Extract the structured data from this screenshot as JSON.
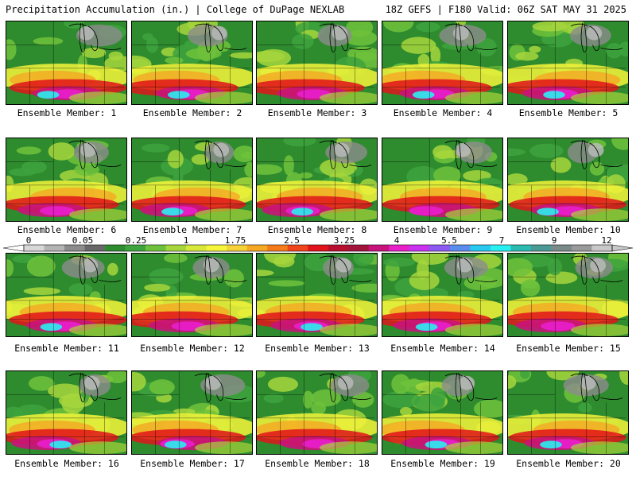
{
  "header": {
    "title": "Precipitation Accumulation (in.) | College of DuPage NEXLAB",
    "valid": "18Z GEFS | F180 Valid: 06Z SAT MAY 31 2025"
  },
  "legend": {
    "tick_labels": [
      "0",
      "0.05",
      "0.25",
      "1",
      "1.75",
      "2.5",
      "3.25",
      "4",
      "5.5",
      "7",
      "9",
      "12"
    ],
    "colors": [
      "#d8d8d8",
      "#b4b4b4",
      "#8c8c8c",
      "#686868",
      "#2e8b2e",
      "#3da33d",
      "#6ec23b",
      "#a6d63c",
      "#d7e83a",
      "#f5f53a",
      "#f5d23a",
      "#f5a823",
      "#f57a1a",
      "#f0441a",
      "#e0141a",
      "#b80f2e",
      "#a0143c",
      "#c8147a",
      "#e81ec8",
      "#c832f0",
      "#8c5af0",
      "#5a8cf0",
      "#28c8f0",
      "#28f0f0",
      "#2abab0",
      "#4a9a96",
      "#7a8a88",
      "#9a9a9a",
      "#c8c8c8"
    ]
  },
  "members": [
    {
      "label": "Ensemble Member: 1"
    },
    {
      "label": "Ensemble Member: 2"
    },
    {
      "label": "Ensemble Member: 3"
    },
    {
      "label": "Ensemble Member: 4"
    },
    {
      "label": "Ensemble Member: 5"
    },
    {
      "label": "Ensemble Member: 6"
    },
    {
      "label": "Ensemble Member: 7"
    },
    {
      "label": "Ensemble Member: 8"
    },
    {
      "label": "Ensemble Member: 9"
    },
    {
      "label": "Ensemble Member: 10"
    },
    {
      "label": "Ensemble Member: 11"
    },
    {
      "label": "Ensemble Member: 12"
    },
    {
      "label": "Ensemble Member: 13"
    },
    {
      "label": "Ensemble Member: 14"
    },
    {
      "label": "Ensemble Member: 15"
    },
    {
      "label": "Ensemble Member: 16"
    },
    {
      "label": "Ensemble Member: 17"
    },
    {
      "label": "Ensemble Member: 18"
    },
    {
      "label": "Ensemble Member: 19"
    },
    {
      "label": "Ensemble Member: 20"
    }
  ]
}
